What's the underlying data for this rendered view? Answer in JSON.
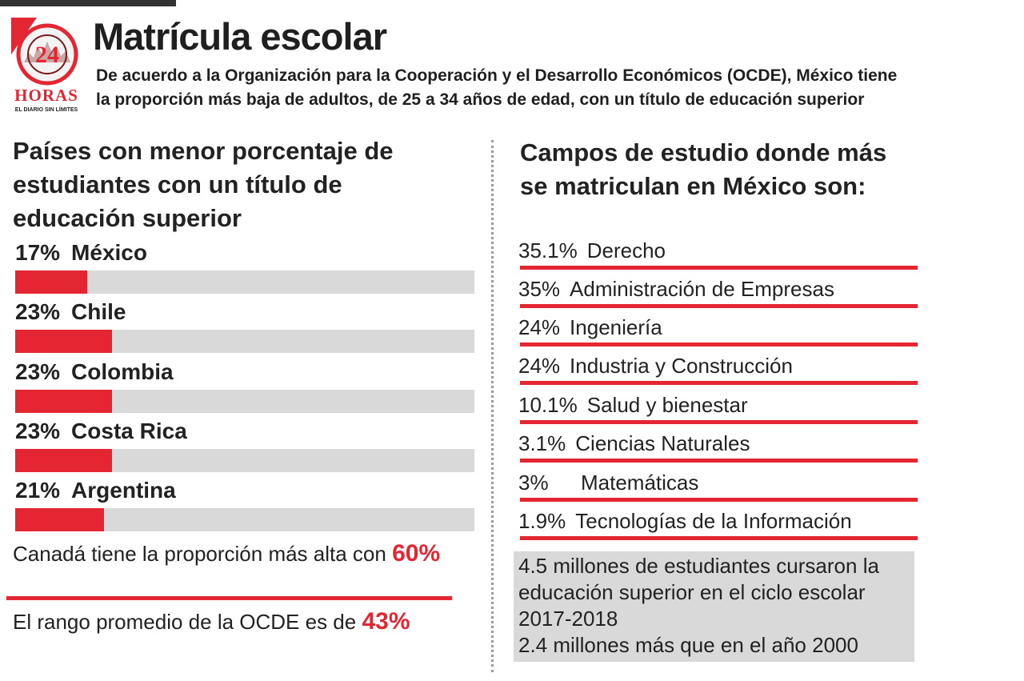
{
  "header": {
    "title": "Matrícula escolar",
    "subtitle_line1": "De acuerdo a la Organización para la Cooperación y el Desarrollo Económicos (OCDE), México tiene",
    "subtitle_line2": "la proporción más baja de adultos, de 25 a 34 años de edad, con un título de educación superior"
  },
  "logo": {
    "number": "24",
    "name": "HORAS",
    "tagline": "EL DIARIO SIN LÍMITES"
  },
  "colors": {
    "accent": "#e32631",
    "track": "#d9d9d9",
    "text": "#222222"
  },
  "left_section": {
    "title_line1": "Países con menor porcentaje de",
    "title_line2": "estudiantes con un título de",
    "title_line3": "educación superior",
    "note1_text": "Canadá tiene la proporción más alta con ",
    "note1_value": "60%",
    "note2_text": "El rango promedio de la OCDE es de ",
    "note2_value": "43%"
  },
  "right_section": {
    "title_line1": "Campos de estudio donde más",
    "title_line2": "se matriculan en México son:",
    "box_line1": "4.5 millones de estudiantes cursaron la",
    "box_line2": "educación superior en el ciclo escolar",
    "box_line3": "2017-2018",
    "box_line4": "2.4 millones más que en el año 2000"
  },
  "chart_data": [
    {
      "type": "bar",
      "orientation": "horizontal",
      "categories": [
        "México",
        "Chile",
        "Colombia",
        "Costa Rica",
        "Argentina"
      ],
      "value_labels": [
        "17%",
        "23%",
        "23%",
        "23%",
        "21%"
      ],
      "values": [
        17,
        23,
        23,
        23,
        21
      ],
      "xlim": [
        0,
        100
      ],
      "unit": "%"
    },
    {
      "type": "table",
      "rows": [
        {
          "pct": "35.1%",
          "field": "Derecho",
          "value": 35.1
        },
        {
          "pct": "35%",
          "field": "Administración de Empresas",
          "value": 35
        },
        {
          "pct": "24%",
          "field": "Ingeniería",
          "value": 24
        },
        {
          "pct": "24%",
          "field": "Industria y Construcción",
          "value": 24
        },
        {
          "pct": "10.1%",
          "field": "Salud y bienestar",
          "value": 10.1
        },
        {
          "pct": "3.1%",
          "field": "Ciencias Naturales",
          "value": 3.1
        },
        {
          "pct": "3%",
          "field": "Matemáticas",
          "value": 3
        },
        {
          "pct": "1.9%",
          "field": "Tecnologías de la Información",
          "value": 1.9
        }
      ]
    }
  ]
}
